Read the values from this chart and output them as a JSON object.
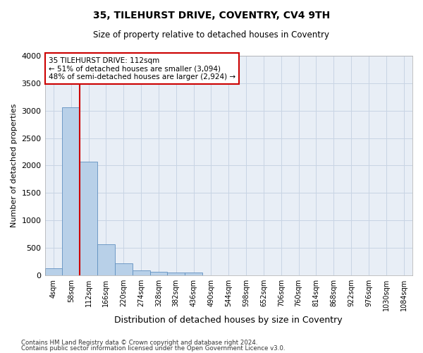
{
  "title": "35, TILEHURST DRIVE, COVENTRY, CV4 9TH",
  "subtitle": "Size of property relative to detached houses in Coventry",
  "xlabel": "Distribution of detached houses by size in Coventry",
  "ylabel": "Number of detached properties",
  "footer_line1": "Contains HM Land Registry data © Crown copyright and database right 2024.",
  "footer_line2": "Contains public sector information licensed under the Open Government Licence v3.0.",
  "categories": [
    "4sqm",
    "58sqm",
    "112sqm",
    "166sqm",
    "220sqm",
    "274sqm",
    "328sqm",
    "382sqm",
    "436sqm",
    "490sqm",
    "544sqm",
    "598sqm",
    "652sqm",
    "706sqm",
    "760sqm",
    "814sqm",
    "868sqm",
    "922sqm",
    "976sqm",
    "1030sqm",
    "1084sqm"
  ],
  "bar_values": [
    130,
    3060,
    2070,
    570,
    220,
    90,
    60,
    50,
    50,
    0,
    0,
    0,
    0,
    0,
    0,
    0,
    0,
    0,
    0,
    0,
    0
  ],
  "bar_color": "#b8d0e8",
  "bar_edge_color": "#6090c0",
  "vline_x_index": 2,
  "vline_color": "#cc0000",
  "ylim": [
    0,
    4000
  ],
  "yticks": [
    0,
    500,
    1000,
    1500,
    2000,
    2500,
    3000,
    3500,
    4000
  ],
  "annotation_title": "35 TILEHURST DRIVE: 112sqm",
  "annotation_line1": "← 51% of detached houses are smaller (3,094)",
  "annotation_line2": "48% of semi-detached houses are larger (2,924) →",
  "annotation_box_color": "#cc0000",
  "grid_color": "#c8d4e4",
  "bg_color": "#e8eef6"
}
